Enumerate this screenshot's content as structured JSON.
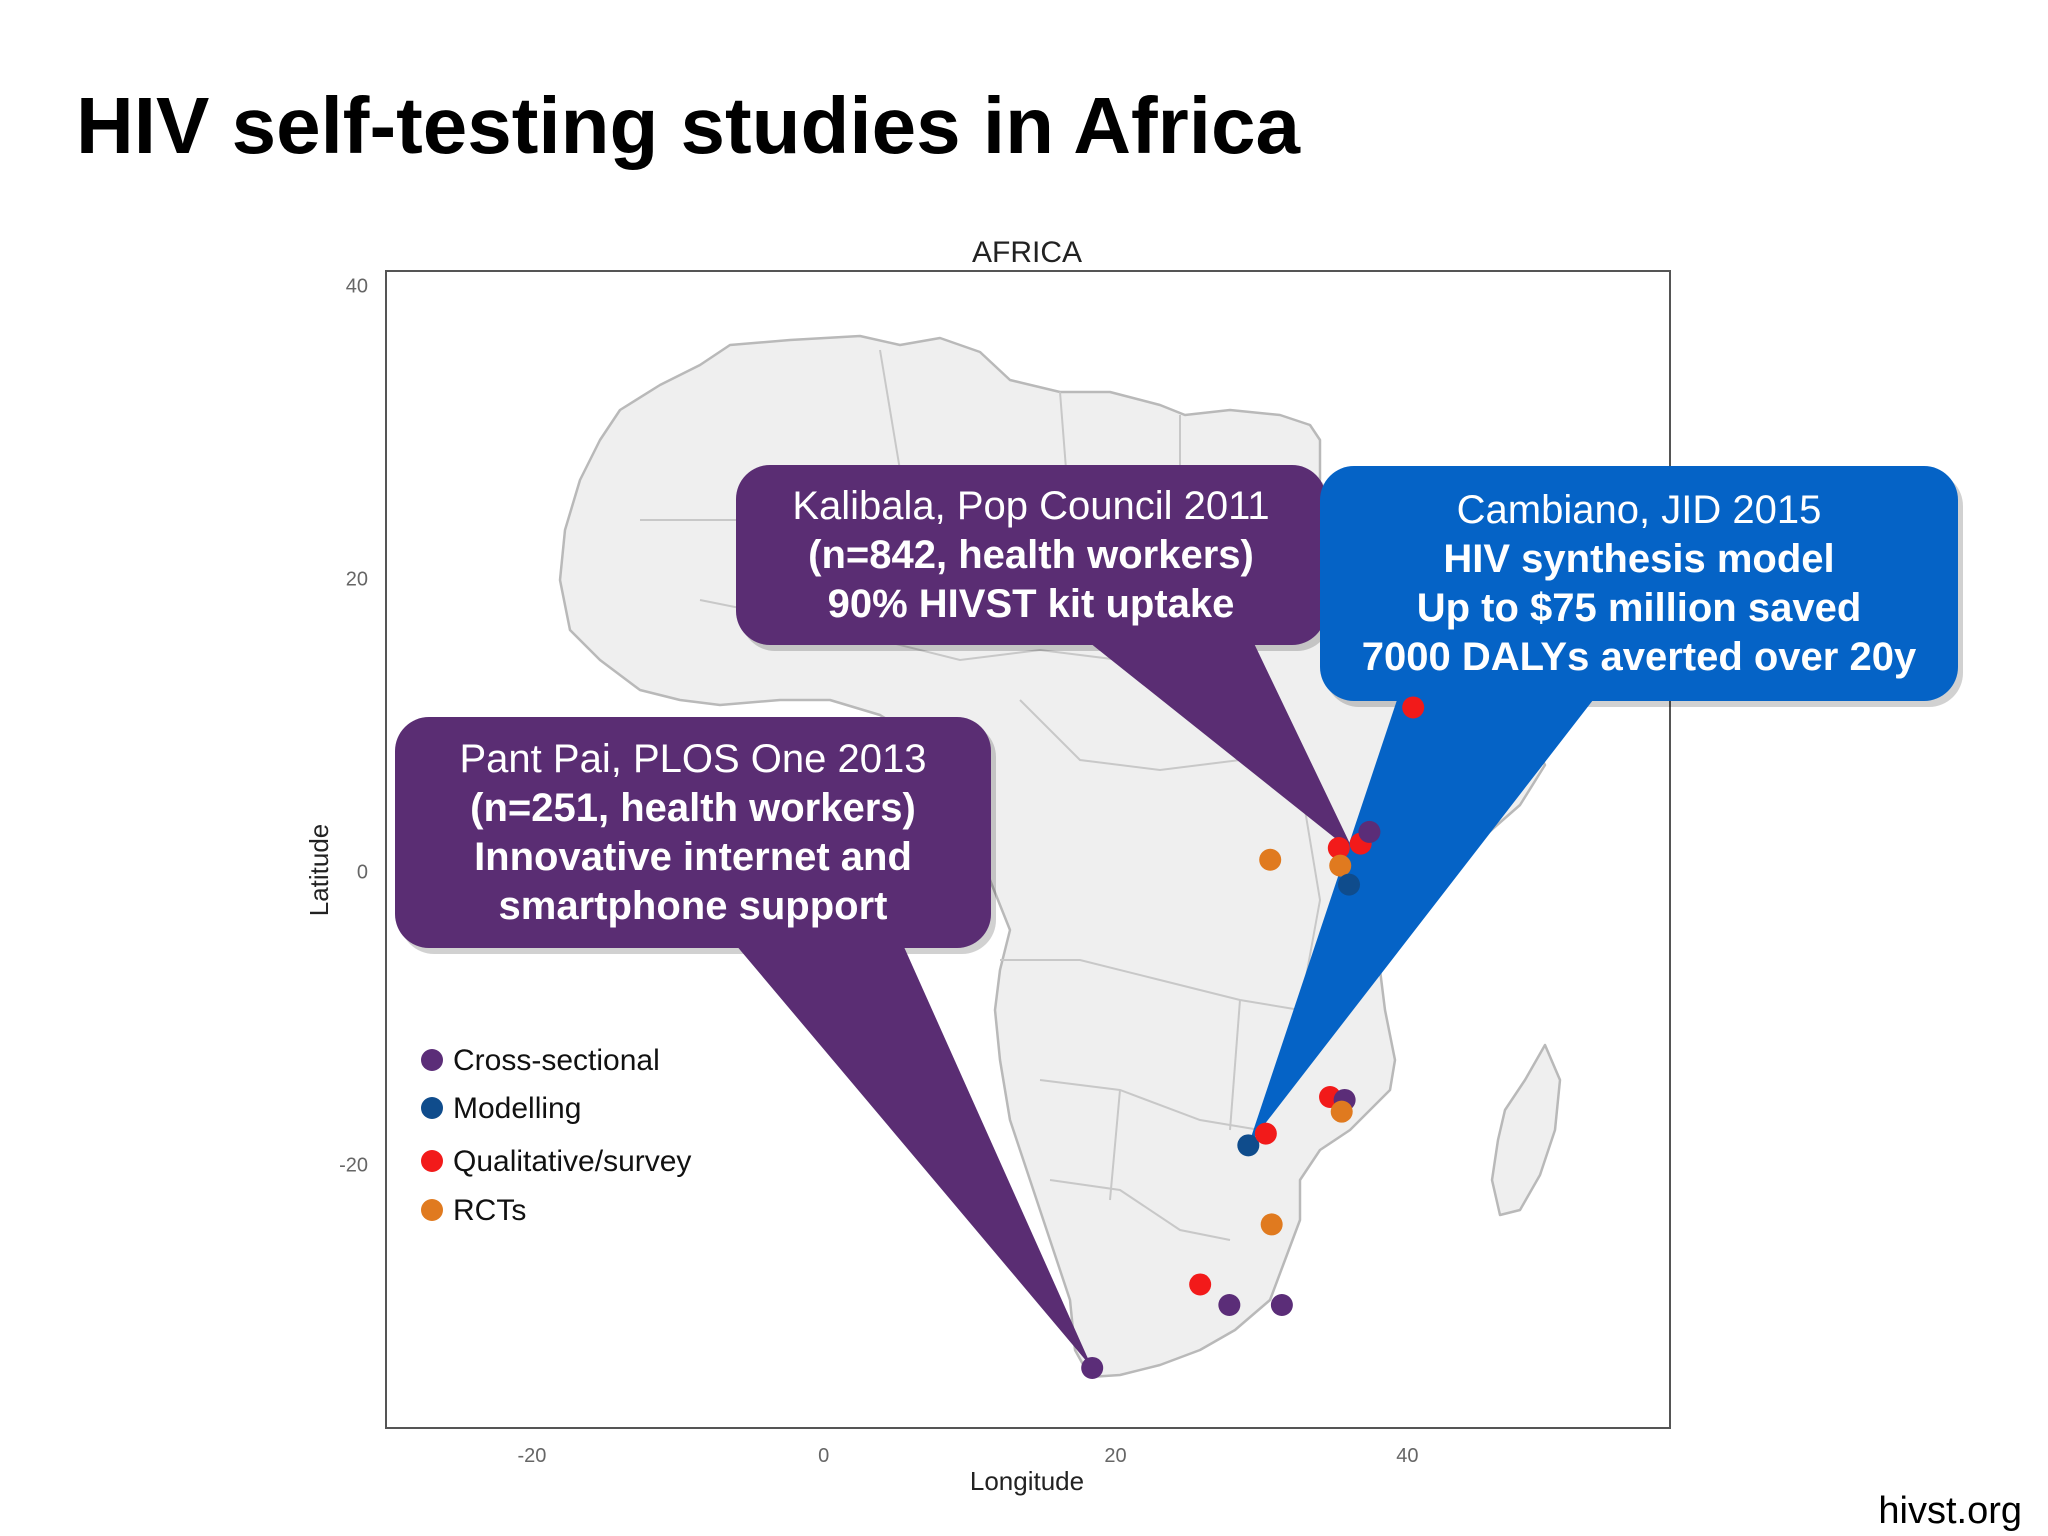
{
  "title": "HIV self-testing studies in Africa",
  "footer": "hivst.org",
  "map": {
    "title": "AFRICA",
    "xlabel": "Longitude",
    "ylabel": "Latitude",
    "x_ticks": [
      -20,
      0,
      20,
      40
    ],
    "y_ticks": [
      40,
      20,
      0,
      -20
    ],
    "xlim": [
      -30,
      58
    ],
    "ylim": [
      -38,
      41
    ]
  },
  "legend": [
    {
      "label": "Cross-sectional",
      "color": "#5b2d78"
    },
    {
      "label": "Modelling",
      "color": "#0f4c8c"
    },
    {
      "label": "Qualitative/survey",
      "color": "#f21a1a"
    },
    {
      "label": "RCTs",
      "color": "#e07a1f"
    }
  ],
  "study_points": [
    {
      "lon": 18.4,
      "lat": -33.9,
      "type": "Cross-sectional"
    },
    {
      "lon": 27.8,
      "lat": -29.6,
      "type": "Cross-sectional"
    },
    {
      "lon": 31.4,
      "lat": -29.6,
      "type": "Cross-sectional"
    },
    {
      "lon": 25.8,
      "lat": -28.2,
      "type": "Qualitative/survey"
    },
    {
      "lon": 30.7,
      "lat": -24.1,
      "type": "RCTs"
    },
    {
      "lon": 29.1,
      "lat": -18.7,
      "type": "Modelling"
    },
    {
      "lon": 30.3,
      "lat": -17.9,
      "type": "Qualitative/survey"
    },
    {
      "lon": 34.7,
      "lat": -15.4,
      "type": "Qualitative/survey"
    },
    {
      "lon": 35.7,
      "lat": -15.6,
      "type": "Cross-sectional"
    },
    {
      "lon": 35.5,
      "lat": -16.4,
      "type": "RCTs"
    },
    {
      "lon": 30.6,
      "lat": 0.8,
      "type": "RCTs"
    },
    {
      "lon": 35.3,
      "lat": 1.6,
      "type": "Qualitative/survey"
    },
    {
      "lon": 36.8,
      "lat": 1.9,
      "type": "Qualitative/survey"
    },
    {
      "lon": 37.4,
      "lat": 2.7,
      "type": "Cross-sectional"
    },
    {
      "lon": 35.4,
      "lat": 0.4,
      "type": "RCTs"
    },
    {
      "lon": 36.0,
      "lat": -0.9,
      "type": "Modelling"
    },
    {
      "lon": 40.4,
      "lat": 11.2,
      "type": "Qualitative/survey"
    }
  ],
  "callouts": [
    {
      "id": "kalibala",
      "color": "#5a2d73",
      "line1": "Kalibala, Pop Council 2011",
      "line2": "(n=842, health workers)",
      "line3": "90% HIVST kit uptake",
      "line4": "",
      "target_lon": 36.4,
      "target_lat": 1.2
    },
    {
      "id": "cambiano",
      "color": "#0563c6",
      "line1": "Cambiano, JID 2015",
      "line2": "HIV synthesis model",
      "line3": "Up to $75 million saved",
      "line4": "7000 DALYs averted over 20y",
      "target_lon": 29.1,
      "target_lat": -18.7
    },
    {
      "id": "pantpai",
      "color": "#5a2d73",
      "line1": "Pant Pai, PLOS One 2013",
      "line2": "(n=251, health workers)",
      "line3": "Innovative internet and",
      "line4": "smartphone support",
      "target_lon": 18.4,
      "target_lat": -33.9
    }
  ]
}
